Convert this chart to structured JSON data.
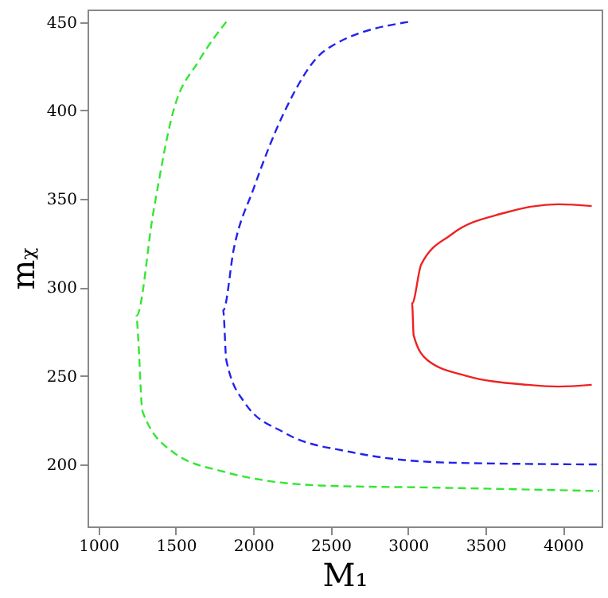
{
  "chart_data": {
    "type": "line",
    "xlabel": "M₁",
    "ylabel": "mᵪ",
    "xlim": [
      930,
      4250
    ],
    "ylim": [
      165,
      457
    ],
    "xticks": [
      1000,
      1500,
      2000,
      2500,
      3000,
      3500,
      4000
    ],
    "yticks": [
      200,
      250,
      300,
      350,
      400,
      450
    ],
    "grid": false,
    "marker": "none",
    "series": [
      {
        "color": "#33e633",
        "line_style": "dashed",
        "x": [
          1826,
          1649,
          1482,
          1354,
          1246,
          1256,
          1285,
          1482,
          1806,
          2465,
          3124,
          4235
        ],
        "values": [
          450,
          428,
          399,
          342,
          284,
          273,
          230,
          207,
          196,
          188,
          187,
          185
        ]
      },
      {
        "color": "#2222ee",
        "line_style": "dashed",
        "x": [
          3000,
          2465,
          2200,
          2003,
          1875,
          1806,
          1826,
          1944,
          2200,
          2632,
          3281,
          4250
        ],
        "values": [
          450,
          434,
          399,
          356,
          322,
          287,
          259,
          235,
          218,
          207,
          201,
          200
        ]
      },
      {
        "color": "#ee2222",
        "line_style": "solid",
        "x": [
          4186,
          3970,
          3616,
          3281,
          3085,
          3026,
          3036,
          3124,
          3380,
          3773,
          3970,
          4186
        ],
        "values": [
          346,
          347,
          342,
          330,
          313,
          291,
          273,
          259,
          250,
          245,
          244,
          245
        ]
      }
    ]
  }
}
